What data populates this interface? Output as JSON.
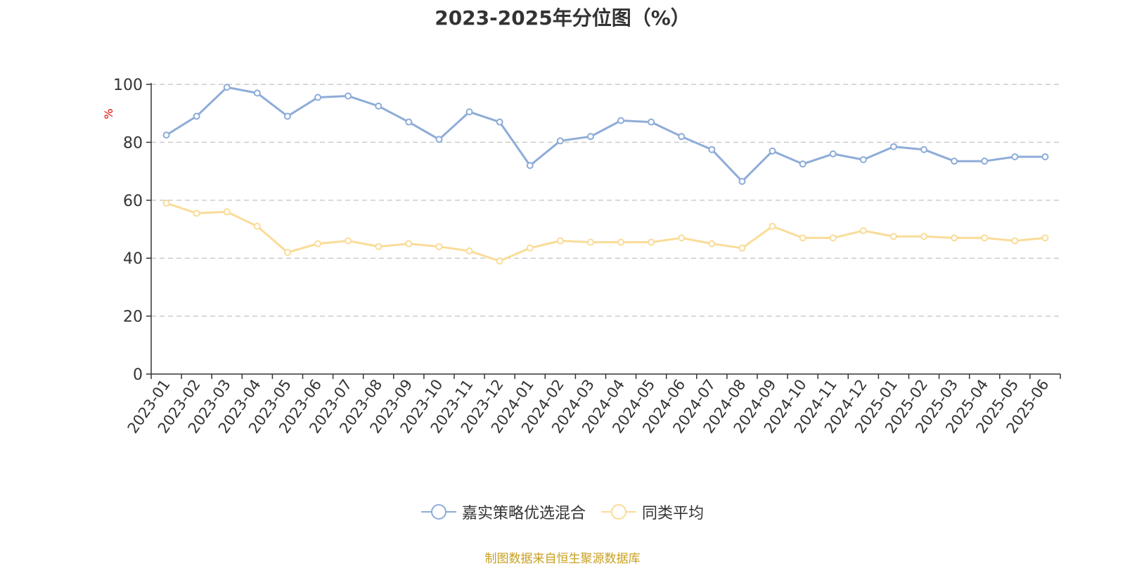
{
  "chart_data": {
    "type": "line",
    "title": "2023-2025年分位图（%）",
    "ylabel": "%",
    "xlabel": "",
    "ylim": [
      0,
      100
    ],
    "yticks": [
      "0",
      "20",
      "40",
      "60",
      "80",
      "100"
    ],
    "grid": true,
    "legend_position": "bottom",
    "categories": [
      "2023-01",
      "2023-02",
      "2023-03",
      "2023-04",
      "2023-05",
      "2023-06",
      "2023-07",
      "2023-08",
      "2023-09",
      "2023-10",
      "2023-11",
      "2023-12",
      "2024-01",
      "2024-02",
      "2024-03",
      "2024-04",
      "2024-05",
      "2024-06",
      "2024-07",
      "2024-08",
      "2024-09",
      "2024-10",
      "2024-11",
      "2024-12",
      "2025-01",
      "2025-02",
      "2025-03",
      "2025-04",
      "2025-05",
      "2025-06"
    ],
    "series": [
      {
        "name": "嘉实策略优选混合",
        "color": "#8eacd8",
        "values": [
          82.5,
          89,
          99,
          97,
          89,
          95.5,
          96,
          92.5,
          87,
          81,
          90.5,
          87,
          72,
          80.5,
          82,
          87.5,
          87,
          82,
          77.5,
          66.5,
          77,
          72.5,
          76,
          74,
          78.5,
          77.5,
          73.5,
          73.5,
          75,
          75
        ]
      },
      {
        "name": "同类平均",
        "color": "#fadc98",
        "values": [
          59,
          55.5,
          56,
          51,
          42,
          45,
          46,
          44,
          45,
          44,
          42.5,
          39,
          43.5,
          46,
          45.5,
          45.5,
          45.5,
          47,
          45,
          43.5,
          51,
          47,
          47,
          49.5,
          47.5,
          47.5,
          47,
          47,
          46,
          47
        ]
      }
    ]
  },
  "source_text": "制图数据来自恒生聚源数据库",
  "colors": {
    "axis": "#333333",
    "grid": "#cccccc",
    "ylabel": "#e00000"
  }
}
